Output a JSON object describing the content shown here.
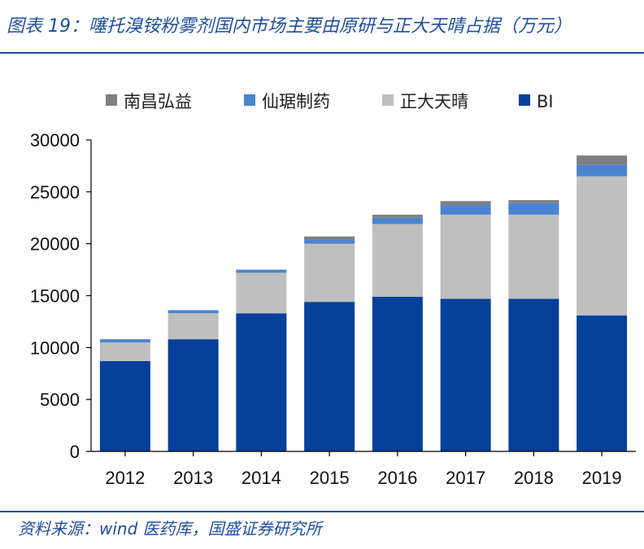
{
  "header": {
    "title": "图表 19：噻托溴铵粉雾剂国内市场主要由原研与正大天晴占据（万元）"
  },
  "footer": {
    "source": "资料来源：wind 医药库，国盛证券研究所"
  },
  "colors": {
    "brand": "#1f4e9c",
    "BI": "#05409a",
    "正大天晴": "#bfbfbf",
    "仙琚制药": "#4a84d0",
    "南昌弘益": "#7f7f7f"
  },
  "chart_data": {
    "type": "bar",
    "stacked": true,
    "title": "噻托溴铵粉雾剂国内市场主要由原研与正大天晴占据（万元）",
    "xlabel": "",
    "ylabel": "",
    "categories": [
      "2012",
      "2013",
      "2014",
      "2015",
      "2016",
      "2017",
      "2018",
      "2019"
    ],
    "ylim": [
      0,
      30000
    ],
    "yticks": [
      0,
      5000,
      10000,
      15000,
      20000,
      25000,
      30000
    ],
    "legend_order": [
      "南昌弘益",
      "仙琚制药",
      "正大天晴",
      "BI"
    ],
    "legend_position": "top",
    "grid": false,
    "series": [
      {
        "name": "BI",
        "values": [
          8700,
          10800,
          13300,
          14400,
          14900,
          14700,
          14700,
          13100
        ]
      },
      {
        "name": "正大天晴",
        "values": [
          1800,
          2500,
          3900,
          5600,
          7000,
          8100,
          8100,
          13400
        ]
      },
      {
        "name": "仙琚制药",
        "values": [
          300,
          300,
          300,
          400,
          600,
          900,
          1100,
          1100
        ]
      },
      {
        "name": "南昌弘益",
        "values": [
          0,
          0,
          0,
          300,
          300,
          400,
          300,
          900
        ]
      }
    ]
  }
}
